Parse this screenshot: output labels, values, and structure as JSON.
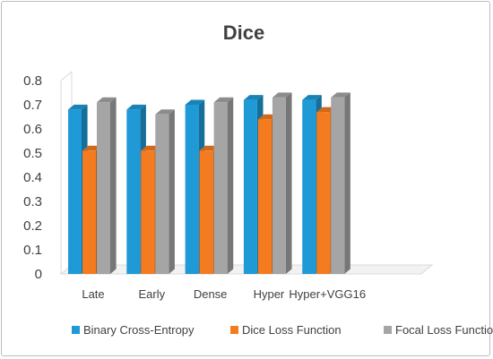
{
  "chart_data": {
    "type": "bar",
    "title": "Dice",
    "xlabel": "",
    "ylabel": "",
    "ylim": [
      0,
      0.8
    ],
    "yticks": [
      "0",
      "0.1",
      "0.2",
      "0.3",
      "0.4",
      "0.5",
      "0.6",
      "0.7",
      "0.8"
    ],
    "categories": [
      "Late",
      "Early",
      "Dense",
      "Hyper",
      "Hyper+VGG16"
    ],
    "series": [
      {
        "name": "Binary Cross-Entropy",
        "values": [
          0.68,
          0.68,
          0.7,
          0.72,
          0.72
        ],
        "color": "#1f9ad6"
      },
      {
        "name": "Dice Loss Function",
        "values": [
          0.51,
          0.51,
          0.51,
          0.64,
          0.67
        ],
        "color": "#f47b20"
      },
      {
        "name": "Focal Loss Function",
        "values": [
          0.71,
          0.66,
          0.71,
          0.73,
          0.73
        ],
        "color": "#a5a5a5"
      }
    ],
    "grid": false,
    "legend": "bottom"
  }
}
